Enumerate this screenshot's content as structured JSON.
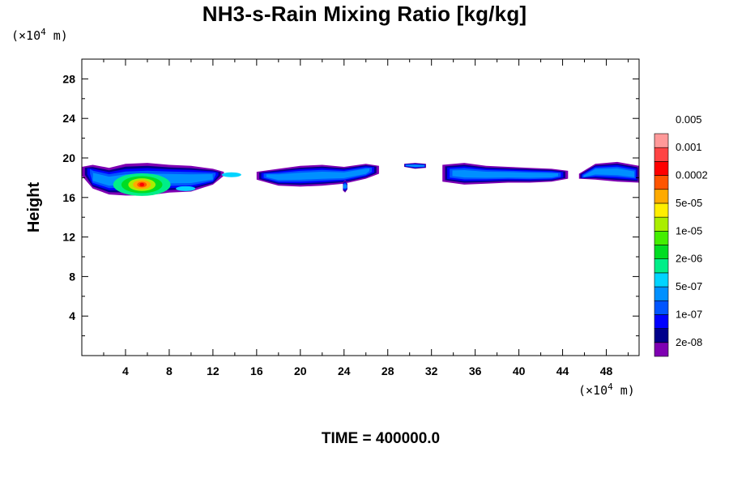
{
  "chart_data": {
    "type": "heatmap",
    "title": "NH3-s-Rain Mixing Ratio [kg/kg]",
    "xlabel": "",
    "ylabel": "Height",
    "x_unit_prefix": "(×10",
    "x_unit_exp": "4",
    "x_unit_suffix": " m)",
    "y_unit_prefix": "(×10",
    "y_unit_exp": "4",
    "y_unit_suffix": " m)",
    "xlim": [
      0,
      51
    ],
    "ylim": [
      0,
      30
    ],
    "x_ticks": [
      4,
      8,
      12,
      16,
      20,
      24,
      28,
      32,
      36,
      40,
      44,
      48
    ],
    "x_tick_labels": [
      "4",
      "8",
      "12",
      "16",
      "20",
      "24",
      "28",
      "32",
      "36",
      "40",
      "44",
      "48"
    ],
    "y_ticks": [
      4,
      8,
      12,
      16,
      20,
      24,
      28
    ],
    "y_tick_labels": [
      "4",
      "8",
      "12",
      "16",
      "20",
      "24",
      "28"
    ],
    "colorbar": {
      "colors": [
        "#7f00b2",
        "#00008b",
        "#0000ff",
        "#0055ff",
        "#0090ff",
        "#00d4ff",
        "#00ee88",
        "#00dd22",
        "#44ee00",
        "#aaee00",
        "#ffee00",
        "#ffaa00",
        "#ff5500",
        "#ff0000",
        "#ff4444",
        "#ff9999"
      ],
      "labels": [
        "2e-08",
        "1e-07",
        "5e-07",
        "2e-06",
        "1e-05",
        "5e-05",
        "0.0002",
        "0.001",
        "0.005"
      ]
    },
    "clouds": [
      {
        "x": [
          0,
          1,
          2.5,
          4,
          6,
          8,
          10,
          12,
          13
        ],
        "top": [
          19.1,
          19.3,
          19.0,
          19.4,
          19.5,
          19.3,
          19.2,
          18.9,
          18.6
        ],
        "bottom": [
          18.2,
          16.9,
          16.3,
          16.2,
          16.2,
          16.5,
          16.6,
          17.3,
          18.2
        ]
      },
      {
        "x": [
          16,
          18,
          20,
          22,
          24,
          26,
          27.2
        ],
        "top": [
          18.6,
          18.9,
          19.2,
          19.3,
          19.1,
          19.4,
          19.2
        ],
        "bottom": [
          17.8,
          17.2,
          17.1,
          17.2,
          17.4,
          17.9,
          18.4
        ]
      },
      {
        "x": [
          23.9,
          24.1,
          24.3
        ],
        "top": [
          17.5,
          17.8,
          17.4
        ],
        "bottom": [
          16.7,
          16.5,
          16.8
        ]
      },
      {
        "x": [
          29.5,
          30.5,
          31.5
        ],
        "top": [
          19.4,
          19.5,
          19.4
        ],
        "bottom": [
          19.1,
          18.9,
          19.0
        ]
      },
      {
        "x": [
          33,
          35,
          37,
          39,
          41,
          43,
          44.5
        ],
        "top": [
          19.3,
          19.5,
          19.2,
          19.1,
          19.0,
          18.9,
          18.7
        ],
        "bottom": [
          17.6,
          17.3,
          17.4,
          17.5,
          17.5,
          17.6,
          17.9
        ]
      },
      {
        "x": [
          45.5,
          47,
          49,
          51
        ],
        "top": [
          18.4,
          19.4,
          19.6,
          19.2
        ],
        "bottom": [
          17.9,
          17.8,
          17.6,
          17.5
        ]
      }
    ],
    "peak": {
      "x": 5.5,
      "y": 17.0
    }
  },
  "time_label": "TIME = 400000.0"
}
